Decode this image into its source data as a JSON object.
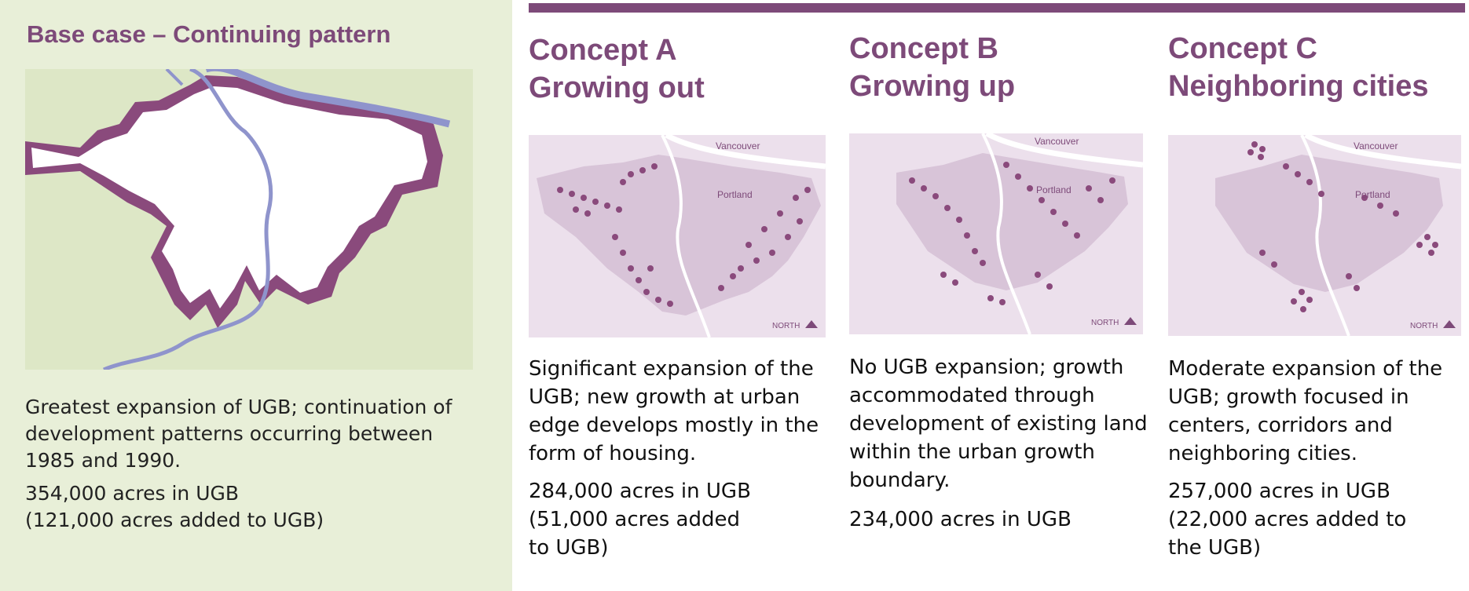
{
  "base_case": {
    "title": "Base case – Continuing pattern",
    "description": "Greatest expansion of UGB; continuation of development patterns occurring between 1985 and 1990.",
    "acres": "354,000 acres in UGB\n(121,000 acres added to UGB)"
  },
  "concepts": [
    {
      "title_line1": "Concept A",
      "title_line2": "Growing out",
      "description": "Significant expansion of the UGB; new growth at urban edge develops mostly in the form of housing.",
      "acres": "284,000 acres in UGB\n(51,000 acres added\nto UGB)",
      "map_labels": {
        "vancouver": "Vancouver",
        "portland": "Portland",
        "north": "NORTH"
      }
    },
    {
      "title_line1": "Concept B",
      "title_line2": "Growing up",
      "description": "No UGB expansion; growth accommodated through development of existing land within the urban growth boundary.",
      "acres": "234,000 acres in UGB",
      "map_labels": {
        "vancouver": "Vancouver",
        "portland": "Portland",
        "north": "NORTH"
      }
    },
    {
      "title_line1": "Concept C",
      "title_line2": "Neighboring cities",
      "description": "Moderate expansion of the UGB; growth focused in centers, corridors and neighboring cities.",
      "acres": "257,000 acres in UGB\n(22,000 acres added to\nthe UGB)",
      "map_labels": {
        "vancouver": "Vancouver",
        "portland": "Portland",
        "north": "NORTH"
      }
    }
  ],
  "colors": {
    "accent_purple": "#7d4a79",
    "base_background": "#e8efd8",
    "river_blue": "#8f94cc",
    "map_background": "#ece0ec",
    "urban_fill": "#d8c4d8"
  }
}
